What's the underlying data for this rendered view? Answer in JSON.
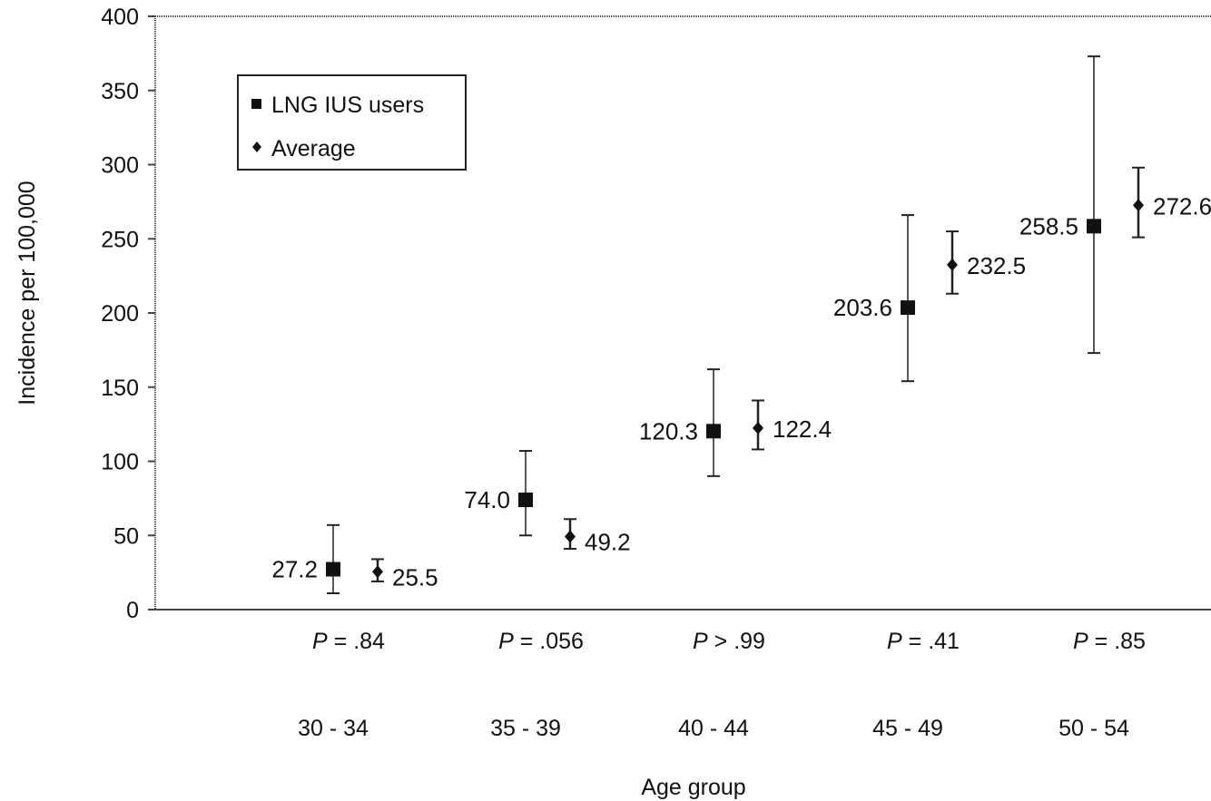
{
  "chart_data": {
    "type": "scatter",
    "xlabel": "Age group",
    "ylabel": "Incidence per 100,000",
    "ylim": [
      0,
      400
    ],
    "yticks": [
      0,
      50,
      100,
      150,
      200,
      250,
      300,
      350,
      400
    ],
    "categories": [
      "30 - 34",
      "35 - 39",
      "40 - 44",
      "45 - 49",
      "50 - 54"
    ],
    "p_values": [
      {
        "prefix": "P",
        "text": " = .84"
      },
      {
        "prefix": "P",
        "text": " = .056"
      },
      {
        "prefix": "P",
        "text": " > .99"
      },
      {
        "prefix": "P",
        "text": " = .41"
      },
      {
        "prefix": "P",
        "text": " = .85"
      }
    ],
    "legend": {
      "placement": "top-left"
    },
    "series": [
      {
        "name": "LNG IUS users",
        "marker": "square",
        "values": [
          27.2,
          74.0,
          120.3,
          203.6,
          258.5
        ],
        "labels": [
          "27.2",
          "74.0",
          "120.3",
          "203.6",
          "258.5"
        ],
        "error_low": [
          11,
          50,
          90,
          154,
          173
        ],
        "error_high": [
          57,
          107,
          162,
          266,
          373
        ]
      },
      {
        "name": "Average",
        "marker": "diamond",
        "values": [
          25.5,
          49.2,
          122.4,
          232.5,
          272.6
        ],
        "labels": [
          "25.5",
          "49.2",
          "122.4",
          "232.5",
          "272.6"
        ],
        "error_low": [
          19,
          41,
          108,
          213,
          251
        ],
        "error_high": [
          34,
          61,
          141,
          255,
          298
        ]
      }
    ],
    "colors": {
      "marker": "#111111",
      "error_bar": "#222222",
      "axis": "#444444"
    }
  }
}
